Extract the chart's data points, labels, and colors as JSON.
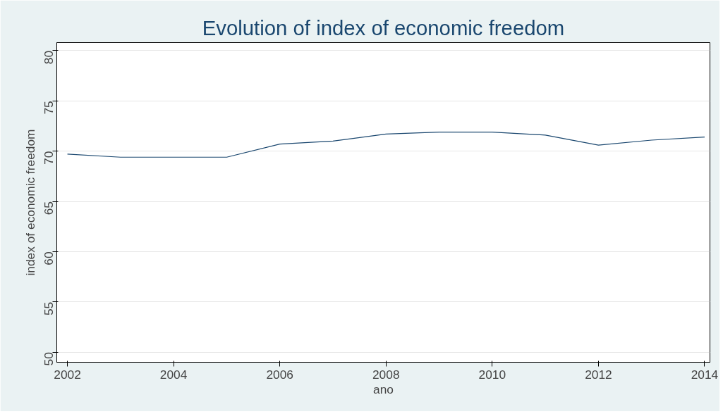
{
  "chart_data": {
    "type": "line",
    "title": "Evolution of index of economic freedom",
    "xlabel": "ano",
    "ylabel": "index of economic freedom",
    "x": [
      2002,
      2003,
      2004,
      2005,
      2006,
      2007,
      2008,
      2009,
      2010,
      2011,
      2012,
      2013,
      2014
    ],
    "series": [
      {
        "color": "#1a476f",
        "values": [
          69.7,
          69.4,
          69.4,
          69.4,
          70.7,
          71.0,
          71.7,
          71.9,
          71.9,
          71.6,
          70.6,
          71.1,
          71.4
        ]
      }
    ],
    "xlim": [
      2001.8,
      2014.1
    ],
    "xticks": [
      2002,
      2004,
      2006,
      2008,
      2010,
      2012,
      2014
    ],
    "ylim": [
      49,
      80.8
    ],
    "yticks": [
      50,
      55,
      60,
      65,
      70,
      75,
      80
    ],
    "grid": "y",
    "marker": "none",
    "line_style": "solid"
  }
}
